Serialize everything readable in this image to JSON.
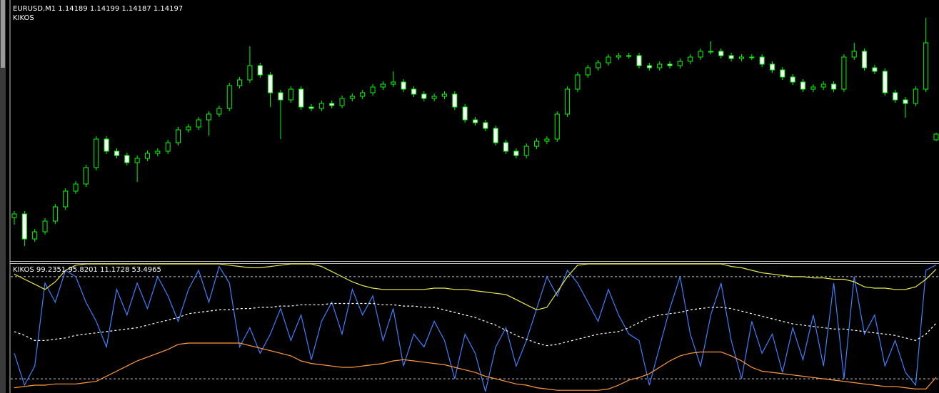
{
  "chart_data": [
    {
      "type": "candlestick",
      "title": "EURUSD,M1  1.14189 1.14199 1.14187 1.14197",
      "subtitle": "KIKOS",
      "color": "#00ff00",
      "up_color": "#000000",
      "down_color": "#ffffff",
      "ylim": [
        1.14019,
        1.14385
      ],
      "open": [
        1.1408,
        1.14085,
        1.1405,
        1.1406,
        1.14075,
        1.14095,
        1.14117,
        1.14127,
        1.1415,
        1.1419,
        1.14173,
        1.14167,
        1.14157,
        1.14163,
        1.1417,
        1.14173,
        1.14185,
        1.14203,
        1.14207,
        1.14217,
        1.14225,
        1.14233,
        1.14265,
        1.14273,
        1.14293,
        1.1428,
        1.14255,
        1.14245,
        1.1426,
        1.14235,
        1.14233,
        1.1424,
        1.14237,
        1.14247,
        1.1425,
        1.14255,
        1.14263,
        1.14267,
        1.1427,
        1.1426,
        1.14253,
        1.14247,
        1.1425,
        1.14253,
        1.14235,
        1.14217,
        1.14213,
        1.14205,
        1.14185,
        1.14173,
        1.14167,
        1.1418,
        1.14187,
        1.1419,
        1.14225,
        1.1426,
        1.1428,
        1.1429,
        1.14297,
        1.14305,
        1.14307,
        1.14307,
        1.14293,
        1.1429,
        1.14295,
        1.14293,
        1.14299,
        1.14305,
        1.14313,
        1.14313,
        1.14307,
        1.14303,
        1.14305,
        1.14305,
        1.14295,
        1.14287,
        1.14277,
        1.1427,
        1.1426,
        1.14263,
        1.14267,
        1.1426,
        1.14305,
        1.14313,
        1.1429,
        1.14285,
        1.14255,
        1.14245,
        1.1424,
        1.1426,
        1.14189
      ],
      "high": [
        1.14089,
        1.14089,
        1.14064,
        1.14079,
        1.14099,
        1.14121,
        1.14131,
        1.14154,
        1.14194,
        1.14194,
        1.14177,
        1.14171,
        1.14167,
        1.14174,
        1.14177,
        1.14189,
        1.14207,
        1.14211,
        1.14221,
        1.14229,
        1.14237,
        1.14269,
        1.14277,
        1.1432,
        1.14297,
        1.14284,
        1.14259,
        1.14264,
        1.14264,
        1.14239,
        1.14244,
        1.14244,
        1.14251,
        1.14254,
        1.14259,
        1.14267,
        1.14271,
        1.14285,
        1.14274,
        1.14264,
        1.14257,
        1.14254,
        1.14257,
        1.14257,
        1.14239,
        1.14221,
        1.14217,
        1.14209,
        1.14189,
        1.14177,
        1.14184,
        1.14191,
        1.14194,
        1.14229,
        1.14264,
        1.14284,
        1.14294,
        1.14301,
        1.14309,
        1.14311,
        1.14311,
        1.14311,
        1.14297,
        1.14299,
        1.14299,
        1.14303,
        1.14309,
        1.14317,
        1.14327,
        1.14317,
        1.14311,
        1.14309,
        1.14309,
        1.14309,
        1.14299,
        1.14291,
        1.14281,
        1.14274,
        1.14267,
        1.14271,
        1.14271,
        1.14309,
        1.14325,
        1.14317,
        1.14294,
        1.14289,
        1.14259,
        1.14249,
        1.14264,
        1.1436,
        1.14199
      ],
      "low": [
        1.1407,
        1.1404,
        1.14046,
        1.14056,
        1.14071,
        1.14091,
        1.14113,
        1.14123,
        1.14146,
        1.14169,
        1.14163,
        1.14153,
        1.1413,
        1.14159,
        1.14166,
        1.14169,
        1.14181,
        1.14199,
        1.14203,
        1.14195,
        1.14221,
        1.14229,
        1.14261,
        1.14269,
        1.14276,
        1.14235,
        1.1419,
        1.14241,
        1.14231,
        1.14229,
        1.14229,
        1.14233,
        1.14233,
        1.14243,
        1.14246,
        1.14251,
        1.14259,
        1.14263,
        1.14256,
        1.14249,
        1.14243,
        1.14243,
        1.14246,
        1.14231,
        1.14213,
        1.14209,
        1.14201,
        1.14181,
        1.14169,
        1.14163,
        1.14163,
        1.14176,
        1.14183,
        1.14186,
        1.14221,
        1.14256,
        1.14276,
        1.14286,
        1.14293,
        1.14301,
        1.14303,
        1.14289,
        1.14286,
        1.14286,
        1.14289,
        1.14289,
        1.14295,
        1.14301,
        1.14309,
        1.14303,
        1.14299,
        1.14299,
        1.14301,
        1.14291,
        1.14283,
        1.14273,
        1.14266,
        1.14256,
        1.14256,
        1.14259,
        1.14256,
        1.14256,
        1.14301,
        1.14286,
        1.14281,
        1.14251,
        1.14241,
        1.1422,
        1.14236,
        1.14256,
        1.14187
      ],
      "close": [
        1.14085,
        1.1405,
        1.1406,
        1.14075,
        1.14095,
        1.14117,
        1.14127,
        1.1415,
        1.1419,
        1.14173,
        1.14167,
        1.14157,
        1.14163,
        1.1417,
        1.14173,
        1.14185,
        1.14203,
        1.14207,
        1.14217,
        1.14225,
        1.14233,
        1.14265,
        1.14273,
        1.14293,
        1.1428,
        1.14255,
        1.14245,
        1.1426,
        1.14235,
        1.14233,
        1.1424,
        1.14237,
        1.14247,
        1.1425,
        1.14255,
        1.14263,
        1.14267,
        1.1427,
        1.1426,
        1.14253,
        1.14247,
        1.1425,
        1.14253,
        1.14235,
        1.14217,
        1.14213,
        1.14205,
        1.14185,
        1.14173,
        1.14167,
        1.1418,
        1.14187,
        1.1419,
        1.14225,
        1.1426,
        1.1428,
        1.1429,
        1.14297,
        1.14305,
        1.14307,
        1.14307,
        1.14293,
        1.1429,
        1.14295,
        1.14293,
        1.14299,
        1.14305,
        1.14313,
        1.14313,
        1.14307,
        1.14303,
        1.14305,
        1.14305,
        1.14295,
        1.14287,
        1.14277,
        1.1427,
        1.1426,
        1.14263,
        1.14267,
        1.1426,
        1.14305,
        1.14313,
        1.1429,
        1.14285,
        1.14255,
        1.14245,
        1.1424,
        1.1426,
        1.14325,
        1.14197
      ]
    },
    {
      "type": "line",
      "title": "KIKOS 99.2351 95.8201 11.1728 53.4965",
      "ylim": [
        0,
        100
      ],
      "hlines": [
        90,
        10
      ],
      "series": [
        {
          "color": "#3f7fff",
          "values": [
            30,
            5,
            20,
            85,
            70,
            95,
            90,
            70,
            55,
            35,
            80,
            60,
            85,
            65,
            90,
            75,
            55,
            80,
            95,
            70,
            98,
            85,
            35,
            50,
            30,
            45,
            65,
            40,
            60,
            25,
            55,
            70,
            45,
            80,
            60,
            75,
            40,
            65,
            20,
            45,
            35,
            55,
            40,
            10,
            45,
            30,
            0,
            35,
            50,
            20,
            40,
            65,
            90,
            75,
            95,
            85,
            70,
            55,
            80,
            60,
            45,
            40,
            5,
            35,
            65,
            90,
            45,
            20,
            60,
            85,
            40,
            10,
            55,
            30,
            45,
            15,
            50,
            25,
            60,
            20,
            85,
            10,
            90,
            45,
            60,
            20,
            40,
            15,
            5,
            95,
            99.2351
          ]
        },
        {
          "color": "#e8e84a",
          "values": [
            92,
            88,
            84,
            80,
            86,
            95,
            99,
            100,
            100,
            100,
            100,
            100,
            100,
            100,
            100,
            100,
            100,
            100,
            100,
            100,
            100,
            99,
            98,
            97,
            97,
            98,
            99,
            100,
            100,
            100,
            98,
            94,
            90,
            86,
            83,
            81,
            80,
            80,
            80,
            80,
            80,
            81,
            81,
            80,
            80,
            79,
            78,
            77,
            76,
            72,
            68,
            64,
            66,
            78,
            90,
            99,
            100,
            100,
            100,
            100,
            100,
            100,
            100,
            100,
            100,
            100,
            100,
            100,
            100,
            100,
            98,
            97,
            95,
            93,
            92,
            91,
            90,
            90,
            89,
            89,
            88,
            88,
            86,
            82,
            81,
            81,
            80,
            80,
            82,
            88,
            95.8201
          ]
        },
        {
          "color": "#ff9a3c",
          "values": [
            3,
            4,
            5,
            5,
            6,
            6,
            6,
            7,
            8,
            12,
            16,
            20,
            24,
            27,
            30,
            33,
            37,
            38,
            38,
            38,
            38,
            38,
            38,
            36,
            34,
            32,
            30,
            28,
            24,
            22,
            21,
            20,
            19,
            19,
            20,
            21,
            22,
            24,
            25,
            24,
            23,
            22,
            21,
            19,
            17,
            15,
            12,
            10,
            8,
            6,
            5,
            3,
            2,
            1,
            1,
            1,
            1,
            1,
            2,
            5,
            9,
            11,
            14,
            19,
            24,
            28,
            30,
            31,
            31,
            31,
            28,
            24,
            19,
            16,
            15,
            14,
            13,
            12,
            11,
            10,
            9,
            8,
            7,
            6,
            5,
            4,
            4,
            3,
            2,
            2,
            11.1728
          ]
        },
        {
          "color": "#ffffff",
          "dashed": true,
          "values": [
            47,
            44,
            40,
            40,
            41,
            42,
            44,
            45,
            46,
            47,
            48,
            49,
            50,
            52,
            54,
            56,
            58,
            61,
            62,
            63,
            64,
            64,
            65,
            65,
            66,
            66,
            67,
            67,
            68,
            68,
            68,
            69,
            69,
            69,
            69,
            69,
            68,
            68,
            67,
            67,
            66,
            66,
            64,
            62,
            60,
            58,
            55,
            52,
            48,
            44,
            41,
            38,
            36,
            37,
            39,
            41,
            43,
            45,
            46,
            47,
            50,
            54,
            58,
            60,
            61,
            62,
            64,
            65,
            66,
            66,
            65,
            63,
            61,
            59,
            57,
            55,
            53,
            52,
            51,
            50,
            49,
            49,
            48,
            47,
            46,
            45,
            44,
            42,
            40,
            45,
            53.4965
          ]
        }
      ]
    }
  ]
}
